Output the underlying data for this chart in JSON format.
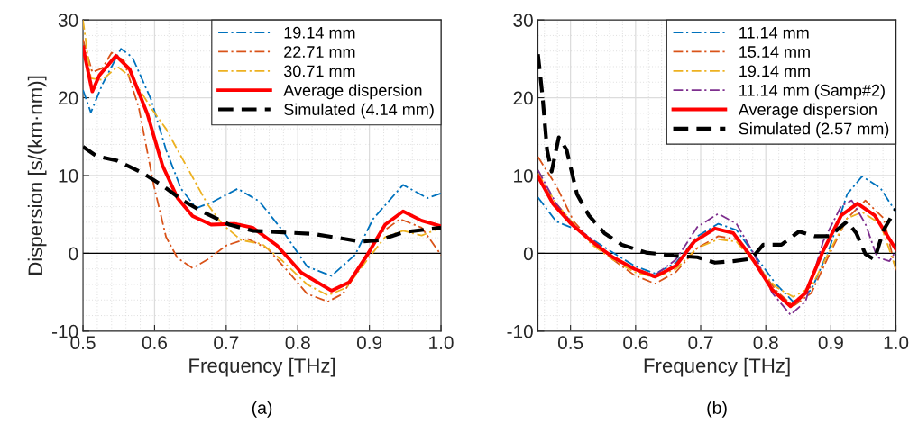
{
  "chart_data": [
    {
      "type": "line",
      "xlabel": "Frequency [THz]",
      "ylabel": "Dispersion [s/(km·nm)]",
      "annotations": [
        "(a)"
      ],
      "xlim": [
        0.5,
        1.0
      ],
      "ylim": [
        -10,
        30
      ],
      "xticks": [
        {
          "value": 0.5,
          "label": "0.5"
        },
        {
          "value": 0.6,
          "label": "0.6"
        },
        {
          "value": 0.7,
          "label": "0.7"
        },
        {
          "value": 0.8,
          "label": "0.8"
        },
        {
          "value": 0.9,
          "label": "0.9"
        },
        {
          "value": 1.0,
          "label": "1.0"
        }
      ],
      "yticks": [
        -10,
        0,
        10,
        20,
        30
      ],
      "grid": true,
      "legend": "top right",
      "ref_lines": [
        {
          "axis": "y",
          "value": 0,
          "color": "#000000",
          "line_style": "solid"
        }
      ],
      "series": [
        {
          "name": "19.14 mm",
          "color": "#0072bd",
          "line_style": "dashdot",
          "x": [
            0.5,
            0.511,
            0.527,
            0.553,
            0.569,
            0.595,
            0.616,
            0.637,
            0.658,
            0.683,
            0.716,
            0.746,
            0.779,
            0.813,
            0.847,
            0.88,
            0.905,
            0.947,
            0.981,
            1.0
          ],
          "values": [
            21,
            18.1,
            21.7,
            26.3,
            25.2,
            19.8,
            13.3,
            8.3,
            5.8,
            6.7,
            8.3,
            6.7,
            2.9,
            -1.7,
            -2.9,
            -0.2,
            4.4,
            8.8,
            7.1,
            7.7
          ]
        },
        {
          "name": "22.71 mm",
          "color": "#d95319",
          "line_style": "dashdot",
          "x": [
            0.5,
            0.513,
            0.527,
            0.54,
            0.557,
            0.578,
            0.599,
            0.616,
            0.632,
            0.653,
            0.674,
            0.7,
            0.729,
            0.758,
            0.788,
            0.813,
            0.842,
            0.863,
            0.889,
            0.914,
            0.943,
            0.973,
            1.0
          ],
          "values": [
            27.5,
            23.3,
            23.8,
            25.8,
            24.8,
            18.7,
            8.7,
            2.1,
            -0.6,
            -1.9,
            -0.8,
            1.0,
            1.9,
            0.6,
            -2.5,
            -5.2,
            -6.2,
            -5.2,
            -1.3,
            2.5,
            4.4,
            3.3,
            -0.2
          ]
        },
        {
          "name": "30.71 mm",
          "color": "#edb120",
          "line_style": "dashdot",
          "x": [
            0.5,
            0.511,
            0.527,
            0.548,
            0.569,
            0.595,
            0.616,
            0.632,
            0.653,
            0.674,
            0.695,
            0.721,
            0.75,
            0.779,
            0.813,
            0.842,
            0.868,
            0.893,
            0.922,
            0.947,
            0.973,
            1.0
          ],
          "values": [
            30,
            22.5,
            22.3,
            24.0,
            22.5,
            18.7,
            16.0,
            13.3,
            9.8,
            6.3,
            3.7,
            1.7,
            1.2,
            -1.0,
            -4.0,
            -5.4,
            -4.4,
            -1.3,
            2.1,
            2.9,
            2.3,
            3.3
          ]
        },
        {
          "name": "Average dispersion",
          "color": "#ff0000",
          "line_style": "solid",
          "x": [
            0.5,
            0.513,
            0.523,
            0.546,
            0.565,
            0.59,
            0.611,
            0.632,
            0.653,
            0.679,
            0.712,
            0.737,
            0.771,
            0.805,
            0.847,
            0.872,
            0.897,
            0.922,
            0.947,
            0.973,
            1.0
          ],
          "values": [
            26.5,
            20.8,
            22.9,
            25.4,
            23.7,
            17.9,
            11.3,
            7.1,
            4.8,
            3.7,
            3.8,
            3.3,
            1.0,
            -2.5,
            -4.8,
            -3.7,
            -0.2,
            3.7,
            5.4,
            4.2,
            3.5
          ]
        },
        {
          "name": "Simulated (4.14 mm)",
          "color": "#000000",
          "line_style": "dashed",
          "x": [
            0.5,
            0.519,
            0.548,
            0.582,
            0.611,
            0.641,
            0.67,
            0.704,
            0.737,
            0.779,
            0.821,
            0.863,
            0.889,
            0.914,
            0.947,
            1.0
          ],
          "values": [
            13.7,
            12.5,
            11.9,
            10.4,
            8.7,
            6.7,
            5.2,
            3.7,
            2.9,
            2.7,
            2.5,
            1.9,
            1.5,
            1.7,
            2.7,
            3.3
          ]
        }
      ]
    },
    {
      "type": "line",
      "xlabel": "Frequency [THz]",
      "annotations": [
        "(b)"
      ],
      "xlim": [
        0.45,
        1.0
      ],
      "ylim": [
        -10,
        30
      ],
      "xticks": [
        {
          "value": 0.5,
          "label": "0.5"
        },
        {
          "value": 0.6,
          "label": "0.6"
        },
        {
          "value": 0.7,
          "label": "0.7"
        },
        {
          "value": 0.8,
          "label": "0.8"
        },
        {
          "value": 0.9,
          "label": "0.9"
        },
        {
          "value": 1.0,
          "label": "1.0"
        }
      ],
      "yticks": [
        -10,
        0,
        10,
        20,
        30
      ],
      "grid": true,
      "legend": "top right",
      "ref_lines": [
        {
          "axis": "y",
          "value": 0,
          "color": "#000000",
          "line_style": "solid"
        }
      ],
      "series": [
        {
          "name": "11.14 mm",
          "color": "#0072bd",
          "line_style": "dashdot",
          "x": [
            0.45,
            0.478,
            0.505,
            0.533,
            0.565,
            0.598,
            0.63,
            0.662,
            0.695,
            0.727,
            0.755,
            0.782,
            0.815,
            0.842,
            0.87,
            0.898,
            0.925,
            0.948,
            0.976,
            1.0
          ],
          "values": [
            7.2,
            4.1,
            3.2,
            1.8,
            0.1,
            -1.6,
            -2.6,
            -1.2,
            2.2,
            3.8,
            3.0,
            -0.1,
            -3.9,
            -6.2,
            -4.7,
            0.7,
            7.6,
            9.9,
            8.4,
            5.3
          ]
        },
        {
          "name": "15.14 mm",
          "color": "#d95319",
          "line_style": "dashdot",
          "x": [
            0.45,
            0.478,
            0.505,
            0.533,
            0.565,
            0.598,
            0.63,
            0.662,
            0.695,
            0.727,
            0.755,
            0.782,
            0.815,
            0.842,
            0.87,
            0.898,
            0.925,
            0.953,
            0.981,
            1.0
          ],
          "values": [
            12.4,
            8.7,
            4.1,
            1.5,
            -0.8,
            -2.8,
            -3.9,
            -2.4,
            0.7,
            2.2,
            1.8,
            -0.8,
            -4.7,
            -6.8,
            -5.1,
            -0.1,
            4.5,
            6.8,
            4.5,
            -2.2
          ]
        },
        {
          "name": "19.14 mm",
          "color": "#edb120",
          "line_style": "dashdot",
          "x": [
            0.45,
            0.478,
            0.505,
            0.533,
            0.565,
            0.598,
            0.63,
            0.662,
            0.695,
            0.727,
            0.755,
            0.782,
            0.815,
            0.842,
            0.87,
            0.898,
            0.925,
            0.948,
            0.976,
            1.0
          ],
          "values": [
            10.3,
            6.4,
            3.8,
            1.1,
            -0.8,
            -2.4,
            -3.1,
            -2.0,
            0.7,
            1.8,
            1.5,
            -1.2,
            -4.3,
            -5.6,
            -4.3,
            0.3,
            4.5,
            5.3,
            3.8,
            -2.0
          ]
        },
        {
          "name": "11.14 mm (Samp#2)",
          "color": "#7e2f8e",
          "line_style": "dashdot",
          "x": [
            0.45,
            0.478,
            0.505,
            0.533,
            0.565,
            0.598,
            0.63,
            0.662,
            0.695,
            0.727,
            0.755,
            0.782,
            0.81,
            0.838,
            0.861,
            0.888,
            0.916,
            0.932,
            0.953,
            0.971,
            0.99,
            1.0
          ],
          "values": [
            10.7,
            6.4,
            3.6,
            1.8,
            -0.5,
            -2.0,
            -2.8,
            -0.8,
            3.4,
            5.1,
            3.8,
            -0.1,
            -5.1,
            -7.9,
            -6.2,
            1.5,
            6.1,
            6.8,
            3.8,
            -0.5,
            -1.0,
            0.3
          ]
        },
        {
          "name": "Average dispersion",
          "color": "#ff0000",
          "line_style": "solid",
          "x": [
            0.45,
            0.473,
            0.501,
            0.533,
            0.565,
            0.598,
            0.63,
            0.662,
            0.69,
            0.722,
            0.75,
            0.778,
            0.81,
            0.838,
            0.861,
            0.888,
            0.916,
            0.941,
            0.967,
            1.0
          ],
          "values": [
            9.9,
            6.4,
            3.8,
            1.5,
            -0.5,
            -2.0,
            -3.0,
            -1.6,
            1.5,
            3.2,
            2.6,
            -0.5,
            -4.7,
            -6.8,
            -5.1,
            0.3,
            4.9,
            6.4,
            4.9,
            0.5
          ]
        },
        {
          "name": "Simulated (2.57 mm)",
          "color": "#000000",
          "line_style": "dashed",
          "x": [
            0.45,
            0.457,
            0.464,
            0.471,
            0.482,
            0.494,
            0.51,
            0.528,
            0.552,
            0.579,
            0.616,
            0.658,
            0.695,
            0.722,
            0.75,
            0.778,
            0.796,
            0.824,
            0.851,
            0.875,
            0.898,
            0.925,
            0.939,
            0.953,
            0.967,
            0.981,
            1.0
          ],
          "values": [
            25.6,
            20.2,
            13.3,
            10.5,
            14.9,
            13.3,
            7.6,
            4.9,
            2.6,
            1.1,
            0.1,
            -0.3,
            -0.5,
            -1.2,
            -1.0,
            -0.7,
            1.1,
            1.1,
            2.8,
            2.2,
            2.2,
            4.1,
            2.6,
            -0.1,
            -0.8,
            3.0,
            5.7
          ]
        }
      ]
    }
  ]
}
